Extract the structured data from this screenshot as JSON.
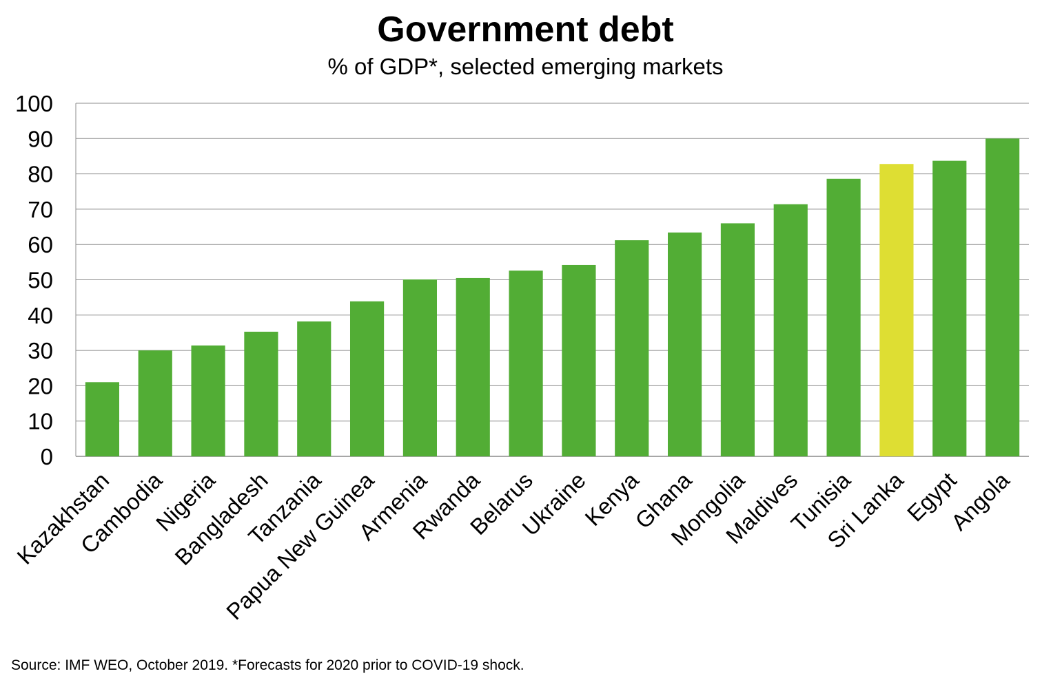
{
  "chart_data": {
    "type": "bar",
    "title": "Government debt",
    "subtitle": "% of GDP*, selected emerging markets",
    "xlabel": "",
    "ylabel": "",
    "ylim": [
      0,
      100
    ],
    "yticks": [
      0,
      10,
      20,
      30,
      40,
      50,
      60,
      70,
      80,
      90,
      100
    ],
    "grid": true,
    "legend": "none",
    "categories": [
      "Kazakhstan",
      "Cambodia",
      "Nigeria",
      "Bangladesh",
      "Tanzania",
      "Papua New Guinea",
      "Armenia",
      "Rwanda",
      "Belarus",
      "Ukraine",
      "Kenya",
      "Ghana",
      "Mongolia",
      "Maldives",
      "Tunisia",
      "Sri Lanka",
      "Egypt",
      "Angola"
    ],
    "values": [
      21,
      30,
      31.4,
      35.3,
      38.2,
      43.9,
      50.1,
      50.5,
      52.6,
      54.2,
      61.2,
      63.4,
      66,
      71.4,
      78.6,
      82.8,
      83.7,
      90
    ],
    "bar_color": "#52ad35",
    "highlight": {
      "category": "Sri Lanka",
      "color": "#dede33"
    },
    "note": "Source: IMF WEO, October 2019. *Forecasts for 2020 prior to COVID-19 shock."
  }
}
